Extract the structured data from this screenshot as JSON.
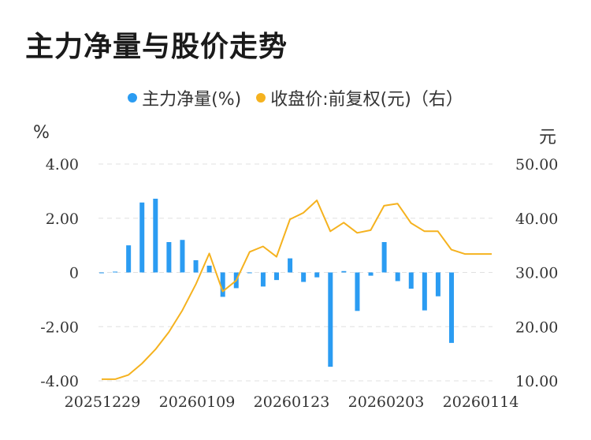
{
  "title": "主力净量与股价走势",
  "colors": {
    "bar": "#2b9cf2",
    "line": "#f5b21f",
    "grid": "#e0e0e0"
  },
  "chart_data": {
    "type": "bar+line",
    "title": "主力净量与股价走势",
    "legend": {
      "placement": "top-center",
      "items": [
        "主力净量(%)",
        "收盘价:前复权(元)（右）"
      ]
    },
    "left_axis": {
      "unit": "%",
      "range": [
        -4,
        4
      ],
      "ticks": [
        "4.00",
        "2.00",
        "0",
        "-2.00",
        "-4.00"
      ]
    },
    "right_axis": {
      "unit": "元",
      "range": [
        10,
        50
      ],
      "ticks": [
        "50.00",
        "40.00",
        "30.00",
        "20.00",
        "10.00"
      ]
    },
    "x_tick_labels": [
      "20251229",
      "20260109",
      "20260123",
      "20260203",
      "20260114"
    ],
    "grid": true,
    "series": [
      {
        "name": "主力净量(%)",
        "type": "bar",
        "axis": "left",
        "values": [
          -0.03,
          0.03,
          1.0,
          2.58,
          2.72,
          1.12,
          1.2,
          0.45,
          0.25,
          -0.9,
          -0.58,
          0.0,
          -0.52,
          -0.28,
          0.52,
          -0.35,
          -0.18,
          -3.48,
          0.05,
          -1.42,
          -0.12,
          1.12,
          -0.32,
          -0.6,
          -1.4,
          -0.88,
          -2.6
        ]
      },
      {
        "name": "收盘价:前复权(元)（右）",
        "type": "line",
        "axis": "right",
        "values": [
          10.3,
          10.3,
          11.1,
          13.2,
          15.8,
          19.0,
          23.0,
          27.8,
          33.5,
          26.5,
          28.5,
          33.8,
          34.8,
          32.9,
          39.8,
          41.0,
          43.3,
          37.6,
          39.2,
          37.3,
          37.8,
          42.3,
          42.7,
          39.1,
          37.6,
          37.6,
          34.2,
          33.4,
          33.4,
          33.4
        ]
      }
    ]
  }
}
